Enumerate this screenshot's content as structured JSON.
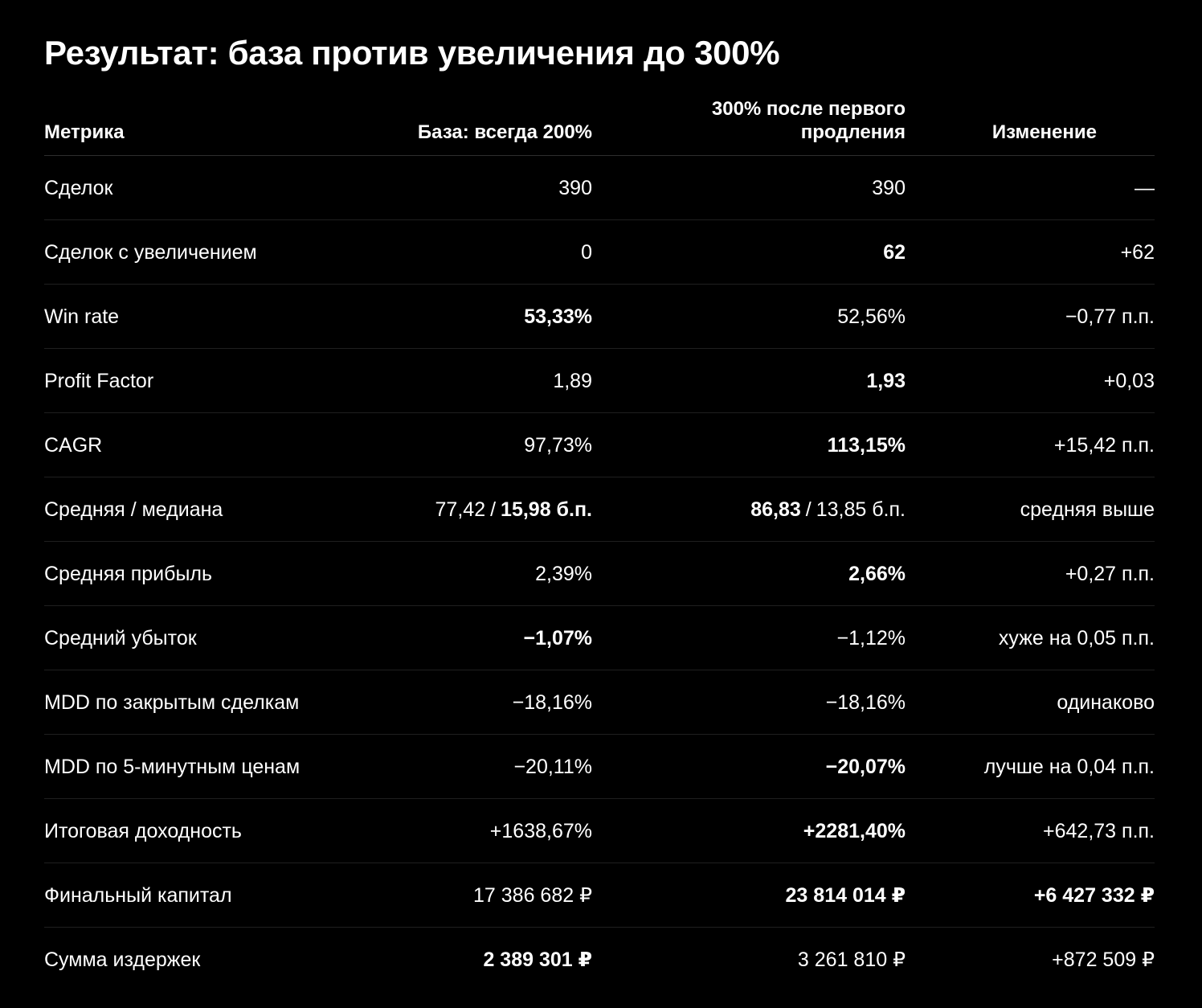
{
  "title": "Результат: база против увеличения до 300%",
  "columns": {
    "metric": "Метрика",
    "base": "База: всегда 200%",
    "boost_line1": "300% после первого",
    "boost_line2": "продления",
    "change": "Изменение"
  },
  "rows": [
    {
      "metric": "Сделок",
      "base": "390",
      "boost": "390",
      "change": "—",
      "bold_base": false,
      "bold_boost": false,
      "bold_change": false
    },
    {
      "metric": "Сделок с увеличением",
      "base": "0",
      "boost": "62",
      "change": "+62",
      "bold_base": false,
      "bold_boost": true,
      "bold_change": false
    },
    {
      "metric": "Win rate",
      "base": "53,33%",
      "boost": "52,56%",
      "change": "−0,77 п.п.",
      "bold_base": true,
      "bold_boost": false,
      "bold_change": false
    },
    {
      "metric": "Profit Factor",
      "base": "1,89",
      "boost": "1,93",
      "change": "+0,03",
      "bold_base": false,
      "bold_boost": true,
      "bold_change": false
    },
    {
      "metric": "CAGR",
      "base": "97,73%",
      "boost": "113,15%",
      "change": "+15,42 п.п.",
      "bold_base": false,
      "bold_boost": true,
      "bold_change": false
    },
    {
      "metric": "Средняя / медиана",
      "base_mean": "77,42",
      "base_median": "15,98 б.п.",
      "boost_mean": "86,83",
      "boost_median": "13,85 б.п.",
      "slash": "/",
      "change": "средняя выше"
    },
    {
      "metric": "Средняя прибыль",
      "base": "2,39%",
      "boost": "2,66%",
      "change": "+0,27 п.п.",
      "bold_base": false,
      "bold_boost": true,
      "bold_change": false
    },
    {
      "metric": "Средний убыток",
      "base": "−1,07%",
      "boost": "−1,12%",
      "change": "хуже на 0,05 п.п.",
      "bold_base": true,
      "bold_boost": false,
      "bold_change": false
    },
    {
      "metric": "MDD по закрытым сделкам",
      "base": "−18,16%",
      "boost": "−18,16%",
      "change": "одинаково",
      "bold_base": false,
      "bold_boost": false,
      "bold_change": false
    },
    {
      "metric": "MDD по 5-минутным ценам",
      "base": "−20,11%",
      "boost": "−20,07%",
      "change": "лучше на 0,04 п.п.",
      "bold_base": false,
      "bold_boost": true,
      "bold_change": false
    },
    {
      "metric": "Итоговая доходность",
      "base": "+1638,67%",
      "boost": "+2281,40%",
      "change": "+642,73 п.п.",
      "bold_base": false,
      "bold_boost": true,
      "bold_change": false
    },
    {
      "metric": "Финальный капитал",
      "base": "17 386 682 ₽",
      "boost": "23 814 014 ₽",
      "change": "+6 427 332 ₽",
      "bold_base": false,
      "bold_boost": true,
      "bold_change": true
    },
    {
      "metric": "Сумма издержек",
      "base": "2 389 301 ₽",
      "boost": "3 261 810 ₽",
      "change": "+872 509 ₽",
      "bold_base": true,
      "bold_boost": false,
      "bold_change": false
    }
  ]
}
